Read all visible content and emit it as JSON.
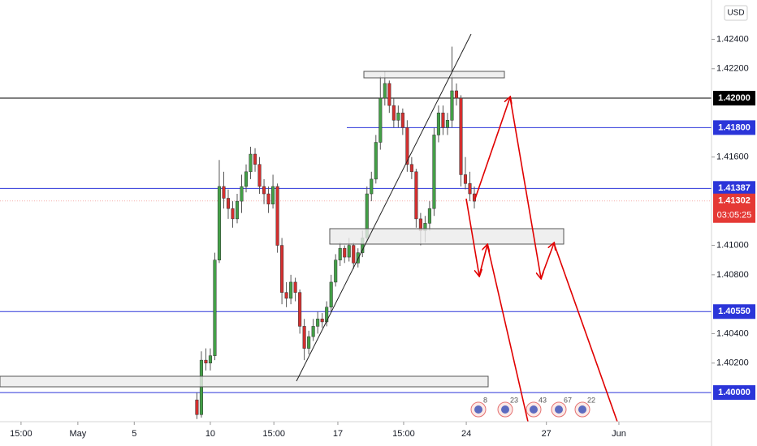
{
  "chart_data": {
    "type": "candlestick",
    "currency": "USD",
    "up_color": "#43a047",
    "down_color": "#d32f2f",
    "ylim": [
      1.39802,
      1.42667
    ],
    "yticks": [
      {
        "value": 1.424,
        "label": "1.42400"
      },
      {
        "value": 1.422,
        "label": "1.42200"
      },
      {
        "value": 1.416,
        "label": "1.41600"
      },
      {
        "value": 1.41,
        "label": "1.41000"
      },
      {
        "value": 1.408,
        "label": "1.40800"
      },
      {
        "value": 1.404,
        "label": "1.40400"
      },
      {
        "value": 1.402,
        "label": "1.40200"
      }
    ],
    "xlim": [
      0,
      159
    ],
    "xticks": [
      {
        "value": 4.7,
        "label": "15:00"
      },
      {
        "value": 17.4,
        "label": "May"
      },
      {
        "value": 30,
        "label": "5"
      },
      {
        "value": 47,
        "label": "10"
      },
      {
        "value": 61.2,
        "label": "15:00"
      },
      {
        "value": 75.5,
        "label": "17"
      },
      {
        "value": 90.2,
        "label": "15:00"
      },
      {
        "value": 104.2,
        "label": "24"
      },
      {
        "value": 122.1,
        "label": "27"
      },
      {
        "value": 138.3,
        "label": "Jun"
      }
    ],
    "levels": [
      {
        "value": 1.42,
        "label": "1.42000",
        "color": "#000000"
      },
      {
        "value": 1.418,
        "label": "1.41800",
        "color": "#2b35d9"
      },
      {
        "value": 1.41387,
        "label": "1.41387",
        "color": "#2b35d9"
      },
      {
        "value": 1.4055,
        "label": "1.40550",
        "color": "#2b35d9"
      },
      {
        "value": 1.4,
        "label": "1.40000",
        "color": "#2b35d9"
      }
    ],
    "last_price": {
      "value": 1.41302,
      "label": "1.41302",
      "countdown": "03:05:25",
      "color": "#e53935"
    },
    "events": [
      "8",
      "23",
      "43",
      "67",
      "22"
    ],
    "x": [
      44,
      45,
      46,
      47,
      48,
      49,
      50,
      51,
      52,
      53,
      54,
      55,
      56,
      57,
      58,
      59,
      60,
      61,
      62,
      63,
      64,
      65,
      66,
      67,
      68,
      69,
      70,
      71,
      72,
      73,
      74,
      75,
      76,
      77,
      78,
      79,
      80,
      81,
      82,
      83,
      84,
      85,
      86,
      87,
      88,
      89,
      90,
      91,
      92,
      93,
      94,
      95,
      96,
      97,
      98,
      99,
      100,
      101,
      102,
      103,
      104,
      105,
      106
    ],
    "candles": [
      [
        1.3995,
        1.4,
        1.3982,
        1.3985
      ],
      [
        1.3985,
        1.4028,
        1.3983,
        1.4022
      ],
      [
        1.4022,
        1.403,
        1.4015,
        1.402
      ],
      [
        1.402,
        1.403,
        1.4015,
        1.4025
      ],
      [
        1.4025,
        1.4095,
        1.4022,
        1.409
      ],
      [
        1.409,
        1.4158,
        1.4088,
        1.414
      ],
      [
        1.414,
        1.415,
        1.4125,
        1.4132
      ],
      [
        1.4132,
        1.4138,
        1.4118,
        1.4125
      ],
      [
        1.4125,
        1.413,
        1.4112,
        1.4118
      ],
      [
        1.4118,
        1.4135,
        1.4115,
        1.413
      ],
      [
        1.413,
        1.4148,
        1.4122,
        1.414
      ],
      [
        1.414,
        1.4155,
        1.4136,
        1.415
      ],
      [
        1.415,
        1.4167,
        1.4145,
        1.4162
      ],
      [
        1.4162,
        1.4166,
        1.415,
        1.4155
      ],
      [
        1.4155,
        1.416,
        1.4135,
        1.414
      ],
      [
        1.414,
        1.4145,
        1.4128,
        1.4135
      ],
      [
        1.4135,
        1.414,
        1.4122,
        1.4128
      ],
      [
        1.4128,
        1.4148,
        1.4125,
        1.414
      ],
      [
        1.414,
        1.4142,
        1.4095,
        1.41
      ],
      [
        1.41,
        1.4105,
        1.406,
        1.4068
      ],
      [
        1.4068,
        1.4075,
        1.4058,
        1.4064
      ],
      [
        1.4064,
        1.408,
        1.406,
        1.4075
      ],
      [
        1.4075,
        1.4078,
        1.4062,
        1.4068
      ],
      [
        1.4068,
        1.407,
        1.404,
        1.4045
      ],
      [
        1.4045,
        1.405,
        1.4022,
        1.403
      ],
      [
        1.403,
        1.4042,
        1.4026,
        1.4038
      ],
      [
        1.4038,
        1.405,
        1.4035,
        1.4045
      ],
      [
        1.4045,
        1.4055,
        1.404,
        1.405
      ],
      [
        1.405,
        1.4054,
        1.4044,
        1.4048
      ],
      [
        1.4048,
        1.4062,
        1.4045,
        1.4058
      ],
      [
        1.4058,
        1.408,
        1.4055,
        1.4075
      ],
      [
        1.4075,
        1.4094,
        1.4072,
        1.409
      ],
      [
        1.409,
        1.4102,
        1.4086,
        1.4098
      ],
      [
        1.4098,
        1.41,
        1.4088,
        1.4092
      ],
      [
        1.4092,
        1.4105,
        1.4089,
        1.41
      ],
      [
        1.41,
        1.4102,
        1.4084,
        1.4088
      ],
      [
        1.4088,
        1.4098,
        1.4085,
        1.4095
      ],
      [
        1.4095,
        1.411,
        1.4092,
        1.4105
      ],
      [
        1.4105,
        1.414,
        1.4102,
        1.4135
      ],
      [
        1.4135,
        1.415,
        1.413,
        1.4145
      ],
      [
        1.4145,
        1.4175,
        1.4142,
        1.417
      ],
      [
        1.417,
        1.4215,
        1.4165,
        1.42
      ],
      [
        1.42,
        1.4218,
        1.4195,
        1.421
      ],
      [
        1.421,
        1.4212,
        1.419,
        1.4195
      ],
      [
        1.4195,
        1.42,
        1.418,
        1.4185
      ],
      [
        1.4185,
        1.4195,
        1.418,
        1.419
      ],
      [
        1.419,
        1.4193,
        1.4175,
        1.418
      ],
      [
        1.418,
        1.4185,
        1.415,
        1.4155
      ],
      [
        1.4155,
        1.416,
        1.4145,
        1.415
      ],
      [
        1.415,
        1.4152,
        1.4112,
        1.4118
      ],
      [
        1.4118,
        1.4122,
        1.41,
        1.411
      ],
      [
        1.411,
        1.412,
        1.4102,
        1.4115
      ],
      [
        1.4115,
        1.413,
        1.411,
        1.4125
      ],
      [
        1.4125,
        1.418,
        1.412,
        1.4175
      ],
      [
        1.4175,
        1.4195,
        1.417,
        1.419
      ],
      [
        1.419,
        1.4195,
        1.4175,
        1.418
      ],
      [
        1.418,
        1.419,
        1.4175,
        1.4185
      ],
      [
        1.4185,
        1.4235,
        1.418,
        1.4205
      ],
      [
        1.4205,
        1.421,
        1.4195,
        1.42
      ],
      [
        1.42,
        1.4202,
        1.414,
        1.4148
      ],
      [
        1.4148,
        1.416,
        1.4138,
        1.4142
      ],
      [
        1.4142,
        1.415,
        1.413,
        1.4135
      ],
      [
        1.4135,
        1.414,
        1.4125,
        1.413
      ]
    ]
  }
}
